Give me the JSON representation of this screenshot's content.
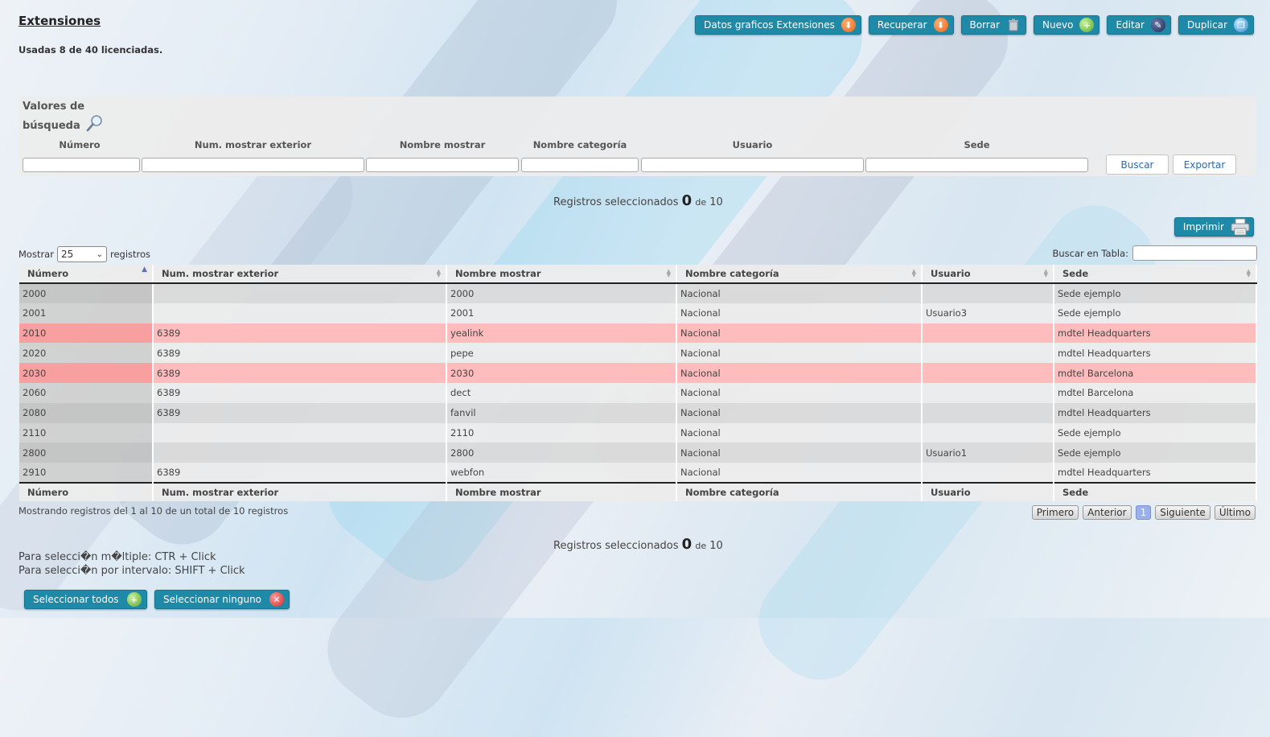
{
  "page": {
    "title": "Extensiones",
    "usage": "Usadas 8 de 40 licenciadas."
  },
  "toolbar": [
    {
      "label": "Datos graficos Extensiones",
      "icon": "download-arrow-icon"
    },
    {
      "label": "Recuperar",
      "icon": "download-arrow-icon"
    },
    {
      "label": "Borrar",
      "icon": "trash-icon"
    },
    {
      "label": "Nuevo",
      "icon": "plus-icon"
    },
    {
      "label": "Editar",
      "icon": "pencil-icon"
    },
    {
      "label": "Duplicar",
      "icon": "duplicate-icon"
    }
  ],
  "search": {
    "title": "Valores de búsqueda",
    "fields": [
      "Número",
      "Num. mostrar exterior",
      "Nombre mostrar",
      "Nombre categoría",
      "Usuario",
      "Sede"
    ],
    "buscar": "Buscar",
    "exportar": "Exportar"
  },
  "selected": {
    "prefix": "Registros seleccionados",
    "count": "0",
    "mid": "de",
    "total": "10"
  },
  "print_label": "Imprimir",
  "length": {
    "before": "Mostrar",
    "value": "25",
    "after": "registros"
  },
  "filter_label": "Buscar en Tabla:",
  "table": {
    "columns": [
      "Número",
      "Num. mostrar exterior",
      "Nombre mostrar",
      "Nombre categoría",
      "Usuario",
      "Sede"
    ],
    "rows": [
      [
        "2000",
        "",
        "2000",
        "Nacional",
        "",
        "Sede ejemplo"
      ],
      [
        "2001",
        "",
        "2001",
        "Nacional",
        "Usuario3",
        "Sede ejemplo"
      ],
      [
        "2010",
        "6389",
        "yealink",
        "Nacional",
        "",
        "mdtel Headquarters"
      ],
      [
        "2020",
        "6389",
        "pepe",
        "Nacional",
        "",
        "mdtel Headquarters"
      ],
      [
        "2030",
        "6389",
        "2030",
        "Nacional",
        "",
        "mdtel Barcelona"
      ],
      [
        "2060",
        "6389",
        "dect",
        "Nacional",
        "",
        "mdtel Barcelona"
      ],
      [
        "2080",
        "6389",
        "fanvil",
        "Nacional",
        "",
        "mdtel Headquarters"
      ],
      [
        "2110",
        "",
        "2110",
        "Nacional",
        "",
        "Sede ejemplo"
      ],
      [
        "2800",
        "",
        "2800",
        "Nacional",
        "Usuario1",
        "Sede ejemplo"
      ],
      [
        "2910",
        "6389",
        "webfon",
        "Nacional",
        "",
        "mdtel Headquarters"
      ]
    ],
    "highlighted_rows": [
      2,
      4
    ],
    "highlight_color": "#ffbcbc"
  },
  "info": "Mostrando registros del 1 al 10 de un total de 10 registros",
  "pager": [
    "Primero",
    "Anterior",
    "1",
    "Siguiente",
    "Último"
  ],
  "hints": [
    "Para selecci�n m�ltiple: CTR + Click",
    "Para selecci�n por intervalo: SHIFT + Click"
  ],
  "bottom_buttons": {
    "select_all": "Seleccionar todos",
    "select_none": "Seleccionar ninguno"
  },
  "colors": {
    "accent": "#1f8aa8"
  }
}
